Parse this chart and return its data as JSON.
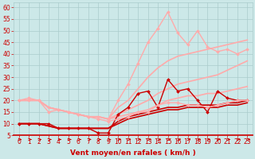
{
  "xlabel": "Vent moyen/en rafales ( km/h )",
  "bg_color": "#cce8e8",
  "grid_color": "#aacccc",
  "xlim": [
    -0.5,
    23.5
  ],
  "ylim": [
    5,
    62
  ],
  "yticks": [
    5,
    10,
    15,
    20,
    25,
    30,
    35,
    40,
    45,
    50,
    55,
    60
  ],
  "xticks": [
    0,
    1,
    2,
    3,
    4,
    5,
    6,
    7,
    8,
    9,
    10,
    11,
    12,
    13,
    14,
    15,
    16,
    17,
    18,
    19,
    20,
    21,
    22,
    23
  ],
  "x": [
    0,
    1,
    2,
    3,
    4,
    5,
    6,
    7,
    8,
    9,
    10,
    11,
    12,
    13,
    14,
    15,
    16,
    17,
    18,
    19,
    20,
    21,
    22,
    23
  ],
  "lines": [
    {
      "y": [
        10,
        10,
        10,
        10,
        8,
        8,
        8,
        8,
        6,
        6,
        14,
        17,
        23,
        24,
        17,
        29,
        24,
        25,
        20,
        15,
        24,
        21,
        20,
        20
      ],
      "color": "#cc0000",
      "lw": 1.0,
      "marker": "D",
      "ms": 2.0
    },
    {
      "y": [
        10,
        10,
        10,
        9,
        8,
        8,
        8,
        8,
        8,
        8,
        10,
        12,
        13,
        14,
        15,
        16,
        16,
        17,
        17,
        17,
        17,
        18,
        18,
        19
      ],
      "color": "#cc0000",
      "lw": 1.2,
      "marker": null,
      "ms": 0
    },
    {
      "y": [
        10,
        10,
        10,
        9,
        8,
        8,
        8,
        8,
        8,
        8,
        11,
        13,
        14,
        15,
        16,
        17,
        17,
        18,
        18,
        18,
        18,
        19,
        19,
        20
      ],
      "color": "#cc0000",
      "lw": 1.2,
      "marker": null,
      "ms": 0
    },
    {
      "y": [
        20,
        21,
        20,
        15,
        16,
        15,
        14,
        13,
        12,
        11,
        12,
        13,
        15,
        15,
        18,
        19,
        19,
        18,
        18,
        17,
        18,
        19,
        20,
        20
      ],
      "color": "#ffaaaa",
      "lw": 1.0,
      "marker": "D",
      "ms": 2.0
    },
    {
      "y": [
        20,
        20,
        20,
        17,
        16,
        15,
        14,
        13,
        13,
        12,
        13,
        14,
        15,
        16,
        18,
        20,
        21,
        22,
        22,
        23,
        23,
        24,
        25,
        26
      ],
      "color": "#ffaaaa",
      "lw": 1.2,
      "marker": null,
      "ms": 0
    },
    {
      "y": [
        20,
        20,
        20,
        17,
        16,
        15,
        14,
        13,
        13,
        12,
        14,
        16,
        18,
        20,
        23,
        25,
        27,
        28,
        29,
        30,
        31,
        33,
        35,
        37
      ],
      "color": "#ffaaaa",
      "lw": 1.2,
      "marker": null,
      "ms": 0
    },
    {
      "y": [
        20,
        20,
        20,
        17,
        16,
        15,
        14,
        13,
        13,
        12,
        17,
        20,
        25,
        30,
        34,
        37,
        39,
        40,
        41,
        42,
        43,
        44,
        45,
        46
      ],
      "color": "#ffaaaa",
      "lw": 1.2,
      "marker": null,
      "ms": 0
    },
    {
      "y": [
        20,
        20,
        20,
        17,
        16,
        15,
        14,
        13,
        13,
        12,
        20,
        27,
        36,
        45,
        51,
        58,
        49,
        44,
        50,
        43,
        41,
        42,
        40,
        42
      ],
      "color": "#ffaaaa",
      "lw": 1.0,
      "marker": "D",
      "ms": 2.0
    }
  ],
  "arrow_color": "#cc0000",
  "axis_label_color": "#cc0000",
  "tick_color": "#cc0000",
  "tick_fontsize": 5.5,
  "xlabel_fontsize": 6.5
}
